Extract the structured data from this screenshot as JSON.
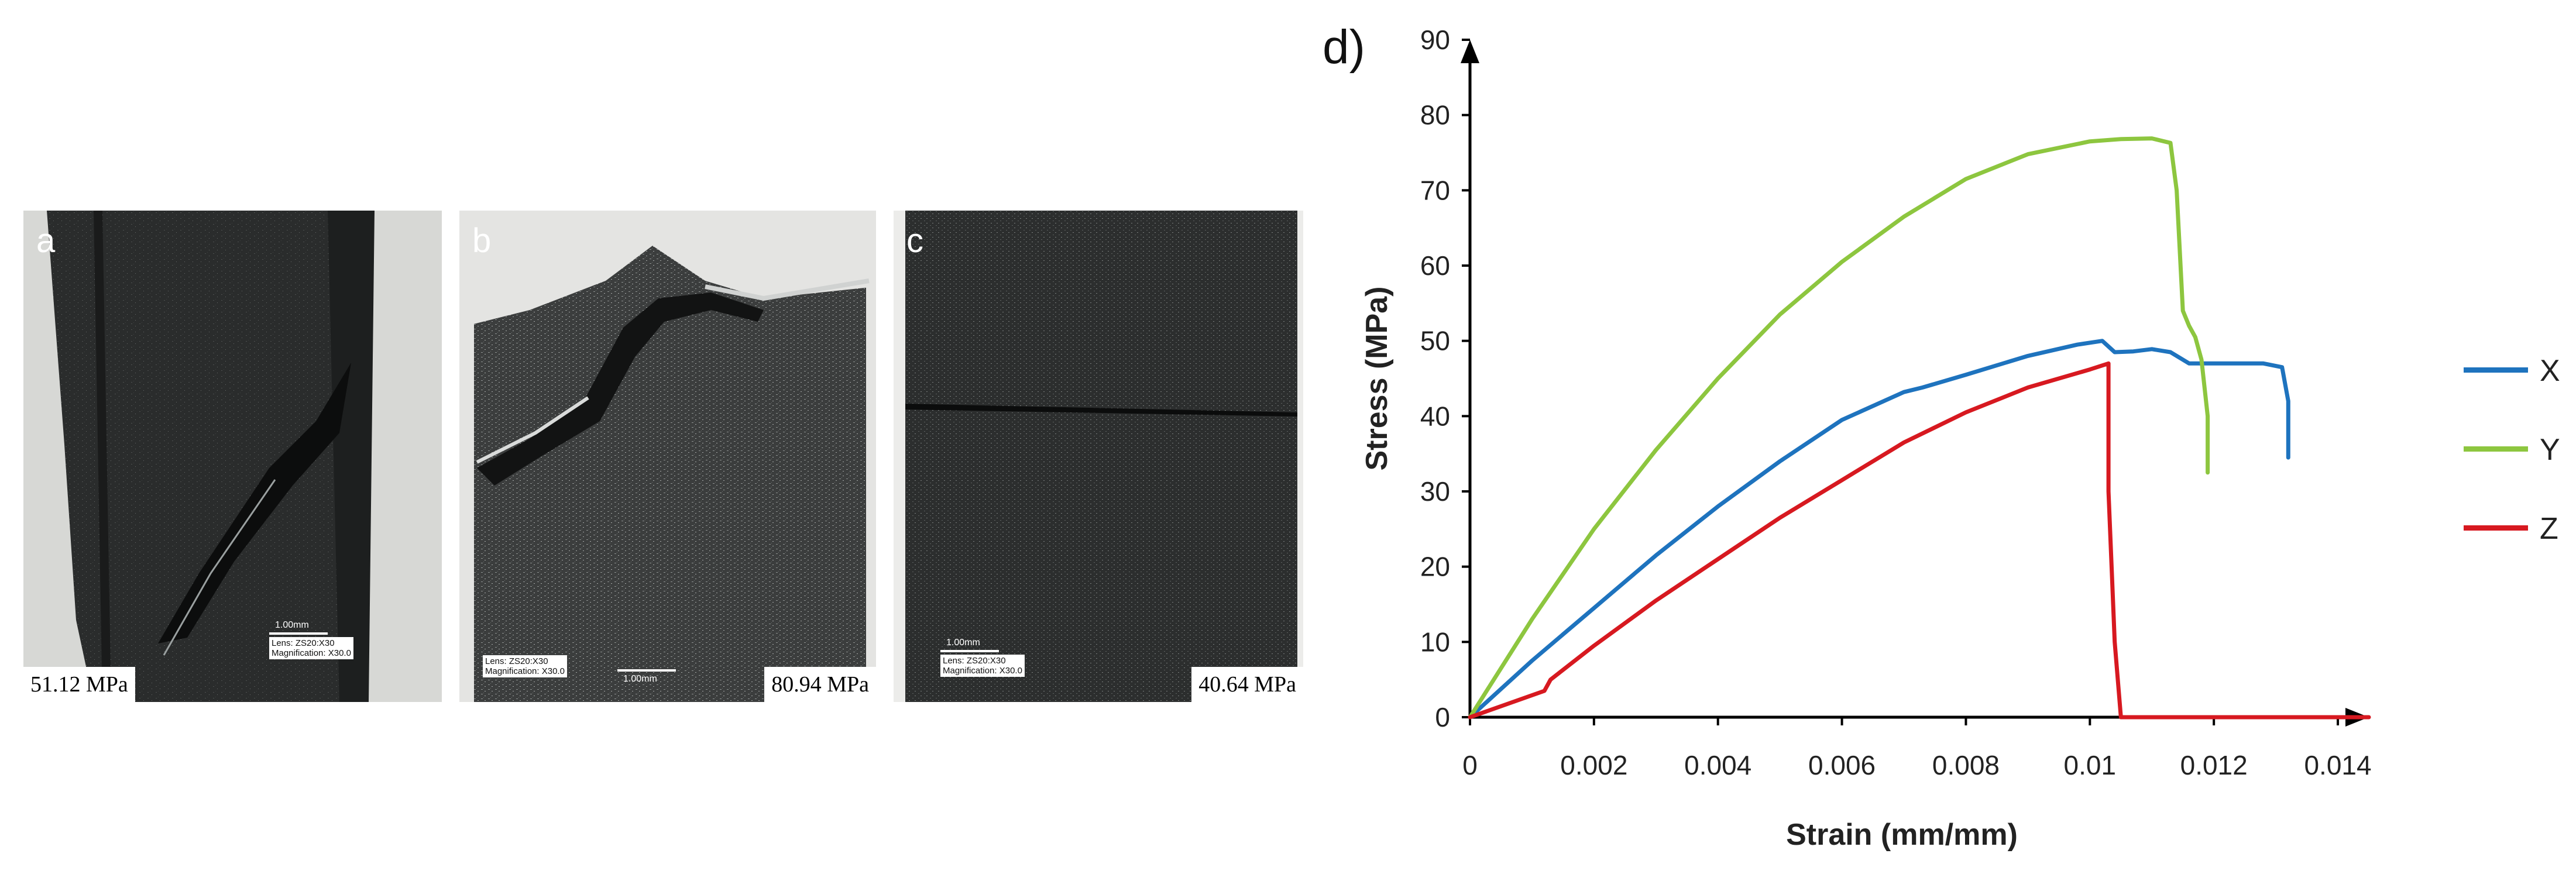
{
  "panels": [
    {
      "letter": "a",
      "stress": "51.12 MPa",
      "scale": "1.00mm",
      "lens": "Lens: ZS20:X30",
      "magnification": "Magnification: X30.0"
    },
    {
      "letter": "b",
      "stress": "80.94 MPa",
      "scale": "1.00mm",
      "lens": "Lens: ZS20:X30",
      "magnification": "Magnification: X30.0"
    },
    {
      "letter": "c",
      "stress": "40.64 MPa",
      "scale": "1.00mm",
      "lens": "Lens: ZS20:X30",
      "magnification": "Magnification: X30.0"
    }
  ],
  "chart_data": {
    "type": "line",
    "panel_label": "d)",
    "title": "",
    "xlabel": "Strain (mm/mm)",
    "ylabel": "Stress (MPa)",
    "xlim": [
      0,
      0.0145
    ],
    "ylim": [
      0,
      90
    ],
    "xticks": [
      0,
      0.002,
      0.004,
      0.006,
      0.008,
      0.01,
      0.012,
      0.014
    ],
    "xtick_labels": [
      "0",
      "0.002",
      "0.004",
      "0.006",
      "0.008",
      "0.01",
      "0.012",
      "0.014"
    ],
    "yticks": [
      0,
      10,
      20,
      30,
      40,
      50,
      60,
      70,
      80,
      90
    ],
    "ytick_labels": [
      "0",
      "10",
      "20",
      "30",
      "40",
      "50",
      "60",
      "70",
      "80",
      "90"
    ],
    "grid": false,
    "legend_position": "right",
    "series": [
      {
        "name": "X",
        "color": "#1e73be",
        "x": [
          0,
          0.001,
          0.002,
          0.003,
          0.004,
          0.005,
          0.006,
          0.007,
          0.0073,
          0.008,
          0.009,
          0.0098,
          0.0102,
          0.0104,
          0.0107,
          0.011,
          0.0113,
          0.0116,
          0.012,
          0.0128,
          0.0131,
          0.0132,
          0.0132
        ],
        "y": [
          0,
          7.5,
          14.5,
          21.5,
          28,
          34,
          39.5,
          43.2,
          43.8,
          45.5,
          48,
          49.5,
          50,
          48.5,
          48.6,
          48.9,
          48.5,
          47,
          47,
          47,
          46.5,
          42,
          34.5
        ]
      },
      {
        "name": "Y",
        "color": "#8dc63f",
        "x": [
          0,
          0.001,
          0.002,
          0.003,
          0.004,
          0.005,
          0.006,
          0.007,
          0.008,
          0.009,
          0.01,
          0.0105,
          0.011,
          0.0113,
          0.0114,
          0.0115,
          0.0116,
          0.0117,
          0.0118,
          0.0119,
          0.0119
        ],
        "y": [
          0,
          13,
          25,
          35.5,
          45,
          53.5,
          60.5,
          66.5,
          71.5,
          74.8,
          76.5,
          76.8,
          76.9,
          76.3,
          70,
          54,
          52,
          50.5,
          47.5,
          40,
          32.5
        ]
      },
      {
        "name": "Z",
        "color": "#d71920",
        "x": [
          0,
          0.0012,
          0.0013,
          0.002,
          0.003,
          0.004,
          0.005,
          0.006,
          0.007,
          0.008,
          0.009,
          0.01,
          0.0103,
          0.0103,
          0.0104,
          0.0105,
          0.0145
        ],
        "y": [
          0,
          3.5,
          5,
          9.5,
          15.5,
          21,
          26.5,
          31.5,
          36.5,
          40.5,
          43.8,
          46.2,
          47,
          30,
          10,
          0,
          0
        ]
      }
    ]
  }
}
